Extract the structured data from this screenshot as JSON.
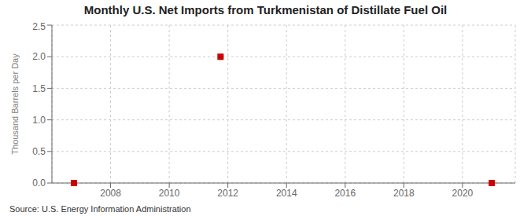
{
  "chart_data": {
    "type": "scatter",
    "title": "Monthly U.S. Net Imports from Turkmenistan of Distillate Fuel Oil",
    "ylabel": "Thousand Barrels per Day",
    "source": "Source: U.S. Energy Information Administration",
    "x": [
      2006.75,
      2011.75,
      2021.0
    ],
    "values": [
      0.0,
      2.0,
      0.0
    ],
    "color": "#CC0000",
    "marker": "square",
    "xlim": [
      2006.0,
      2021.8
    ],
    "ylim": [
      0.0,
      2.5
    ],
    "xticks": [
      2008,
      2010,
      2012,
      2014,
      2016,
      2018,
      2020
    ],
    "yticks": [
      {
        "value": 0.0,
        "label": "0.0"
      },
      0.5,
      {
        "value": 1.0,
        "label": "1.0"
      },
      1.5,
      {
        "value": 2.0,
        "label": "2.0"
      },
      2.5
    ],
    "grid": true
  }
}
